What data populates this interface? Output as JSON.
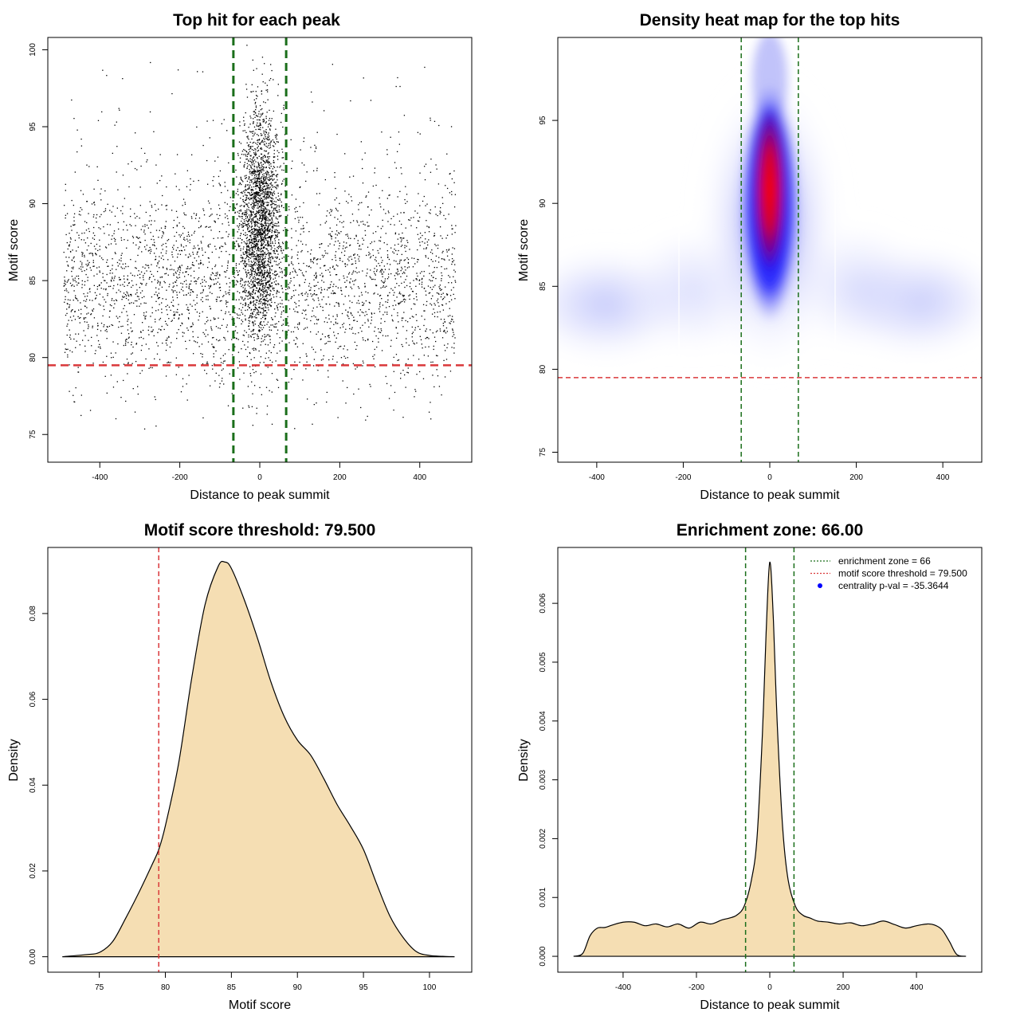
{
  "colors": {
    "threshold_line": "#d9383a",
    "zone_line": "#1a6e1a",
    "density_fill": "#f5deb3",
    "points": "#000000",
    "legend_dot": "#0000ff"
  },
  "chart_data": [
    {
      "id": "scatter",
      "type": "scatter",
      "title": "Top hit for each peak",
      "xlabel": "Distance to peak summit",
      "ylabel": "Motif score",
      "xlim": [
        -530,
        530
      ],
      "ylim": [
        73.2,
        100.8
      ],
      "xticks": [
        -400,
        -200,
        0,
        200,
        400
      ],
      "yticks": [
        75,
        80,
        85,
        90,
        95,
        100
      ],
      "vlines": [
        -66,
        66
      ],
      "hline": 79.5,
      "points_description_note": "",
      "points_background": {
        "count": 3300,
        "x_range": [
          -490,
          490
        ],
        "y_mean": 84.5,
        "y_sd": 3.2
      },
      "points_central": {
        "count": 2300,
        "x_sd": 24,
        "y_mean": 89,
        "y_sd": 3.6
      }
    },
    {
      "id": "heatmap",
      "type": "heatmap",
      "title": "Density heat map for the top hits",
      "xlabel": "Distance to peak summit",
      "ylabel": "Motif score",
      "xlim": [
        -490,
        490
      ],
      "ylim": [
        74.4,
        100.0
      ],
      "xticks": [
        -400,
        -200,
        0,
        200,
        400
      ],
      "yticks": [
        75,
        80,
        85,
        90,
        95
      ],
      "vlines": [
        -66,
        66
      ],
      "hline": 79.5,
      "peak": {
        "x": 0,
        "y": 91.5
      }
    },
    {
      "id": "score-density",
      "type": "area",
      "title": "Motif score threshold: 79.500",
      "xlabel": "Motif score",
      "ylabel": "Density",
      "xlim": [
        71.1,
        103.2
      ],
      "ylim": [
        -0.0036,
        0.0954
      ],
      "xticks": [
        75,
        80,
        85,
        90,
        95,
        100
      ],
      "yticks": [
        0.0,
        0.02,
        0.04,
        0.06,
        0.08
      ],
      "ytick_labels": [
        "0.00",
        "0.02",
        "0.04",
        "0.06",
        "0.08"
      ],
      "vline": 79.5,
      "x": [
        72.2,
        74.0,
        75.0,
        76.0,
        77.0,
        78.0,
        79.0,
        79.5,
        80.0,
        81.0,
        82.0,
        83.0,
        84.0,
        84.5,
        85.0,
        86.0,
        87.0,
        88.0,
        89.0,
        90.0,
        91.0,
        92.0,
        93.0,
        94.0,
        95.0,
        96.0,
        97.0,
        98.0,
        99.0,
        100.0,
        101.0,
        101.9
      ],
      "y": [
        0.0,
        0.0005,
        0.001,
        0.0035,
        0.009,
        0.015,
        0.0215,
        0.025,
        0.0305,
        0.045,
        0.065,
        0.082,
        0.091,
        0.092,
        0.0905,
        0.083,
        0.074,
        0.064,
        0.056,
        0.0505,
        0.047,
        0.0415,
        0.0355,
        0.0305,
        0.025,
        0.017,
        0.0095,
        0.0045,
        0.0012,
        0.0003,
        0.0001,
        0.0
      ]
    },
    {
      "id": "distance-density",
      "type": "area",
      "title": "Enrichment zone: 66.00",
      "xlabel": "Distance to peak summit",
      "ylabel": "Density",
      "xlim": [
        -578,
        578
      ],
      "ylim": [
        -0.00027,
        0.00695
      ],
      "xticks": [
        -400,
        -200,
        0,
        200,
        400
      ],
      "yticks": [
        0.0,
        0.001,
        0.002,
        0.003,
        0.004,
        0.005,
        0.006
      ],
      "ytick_labels": [
        "0.000",
        "0.001",
        "0.002",
        "0.003",
        "0.004",
        "0.005",
        "0.006"
      ],
      "vlines": [
        -66,
        66
      ],
      "x": [
        -535,
        -510,
        -490,
        -470,
        -450,
        -430,
        -400,
        -370,
        -340,
        -310,
        -280,
        -250,
        -220,
        -190,
        -160,
        -130,
        -110,
        -90,
        -70,
        -50,
        -35,
        -20,
        -10,
        0,
        10,
        20,
        35,
        50,
        70,
        90,
        110,
        130,
        160,
        190,
        220,
        250,
        280,
        310,
        340,
        370,
        400,
        430,
        450,
        470,
        490,
        510,
        535
      ],
      "y": [
        0.0,
        5e-05,
        0.00035,
        0.00048,
        0.00049,
        0.00053,
        0.00058,
        0.00058,
        0.00052,
        0.00055,
        0.0005,
        0.00055,
        0.00048,
        0.00058,
        0.00055,
        0.00062,
        0.00065,
        0.0007,
        0.00085,
        0.0013,
        0.002,
        0.0038,
        0.0055,
        0.0067,
        0.0057,
        0.004,
        0.0022,
        0.0013,
        0.00085,
        0.0007,
        0.00065,
        0.0006,
        0.00058,
        0.00055,
        0.00057,
        0.00052,
        0.00055,
        0.0006,
        0.00054,
        0.00048,
        0.00052,
        0.00055,
        0.00053,
        0.00045,
        0.00025,
        3e-05,
        0.0
      ],
      "legend": [
        {
          "label": "enrichment zone = 66",
          "style": "dotted-line",
          "color": "#1a6e1a"
        },
        {
          "label": "motif score threshold = 79.500",
          "style": "dotted-line",
          "color": "#d9383a"
        },
        {
          "label": "centrality p-val = -35.3644",
          "style": "dot",
          "color": "#0000ff"
        }
      ],
      "legend_position": "top-right"
    }
  ]
}
